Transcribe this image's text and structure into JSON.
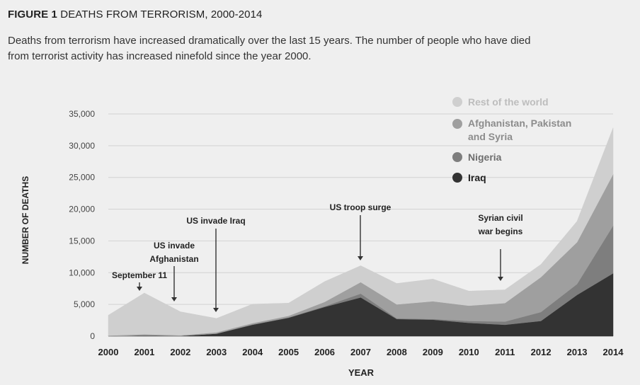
{
  "header": {
    "figure_label": "FIGURE 1",
    "title": "DEATHS FROM TERRORISM, 2000-2014",
    "subtitle_line1": "Deaths from terrorism have increased dramatically over the last 15 years. The number of people who have died",
    "subtitle_line2": "from terrorist activity has increased ninefold since the year 2000."
  },
  "chart_data": {
    "type": "area",
    "stacked": true,
    "xlabel": "YEAR",
    "ylabel": "NUMBER OF DEATHS",
    "ylim": [
      0,
      35000
    ],
    "yticks": [
      0,
      5000,
      10000,
      15000,
      20000,
      25000,
      30000,
      35000
    ],
    "ytick_labels": [
      "0",
      "5,000",
      "10,000",
      "15,000",
      "20,000",
      "25,000",
      "30,000",
      "35,000"
    ],
    "x": [
      "2000",
      "2001",
      "2002",
      "2003",
      "2004",
      "2005",
      "2006",
      "2007",
      "2008",
      "2009",
      "2010",
      "2011",
      "2012",
      "2013",
      "2014"
    ],
    "series": [
      {
        "name": "Iraq",
        "color": "#333333",
        "values": [
          0,
          100,
          50,
          400,
          1800,
          2900,
          4600,
          6100,
          2700,
          2600,
          2100,
          1800,
          2400,
          6500,
          9900
        ]
      },
      {
        "name": "Nigeria",
        "color": "#7e7e7e",
        "values": [
          0,
          0,
          0,
          0,
          50,
          50,
          100,
          600,
          100,
          100,
          300,
          500,
          1400,
          1700,
          7500
        ]
      },
      {
        "name": "Afghanistan, Pakistan and Syria",
        "color": "#9f9f9f",
        "values": [
          100,
          200,
          100,
          200,
          200,
          250,
          700,
          1800,
          2200,
          2800,
          2400,
          2900,
          5500,
          6600,
          8100
        ]
      },
      {
        "name": "Rest of the world",
        "color": "#cfcfcf",
        "values": [
          3200,
          6500,
          3700,
          2200,
          3000,
          2000,
          3200,
          2600,
          3300,
          3500,
          2300,
          2100,
          2000,
          3300,
          7300
        ]
      }
    ],
    "legend_position": "top-right",
    "legend_order": [
      "Rest of the world",
      "Afghanistan, Pakistan and Syria",
      "Nigeria",
      "Iraq"
    ],
    "annotations": [
      {
        "text": "September 11",
        "x": "2001",
        "y": 6600
      },
      {
        "text": "US invade Afghanistan",
        "x": "2001.8",
        "y": 5000
      },
      {
        "text": "US invade Iraq",
        "x": "2003",
        "y": 2900
      },
      {
        "text": "US troop surge",
        "x": "2007",
        "y": 11000
      },
      {
        "text": "Syrian civil war begins",
        "x": "2010.9",
        "y": 8500
      }
    ],
    "grid": true
  }
}
